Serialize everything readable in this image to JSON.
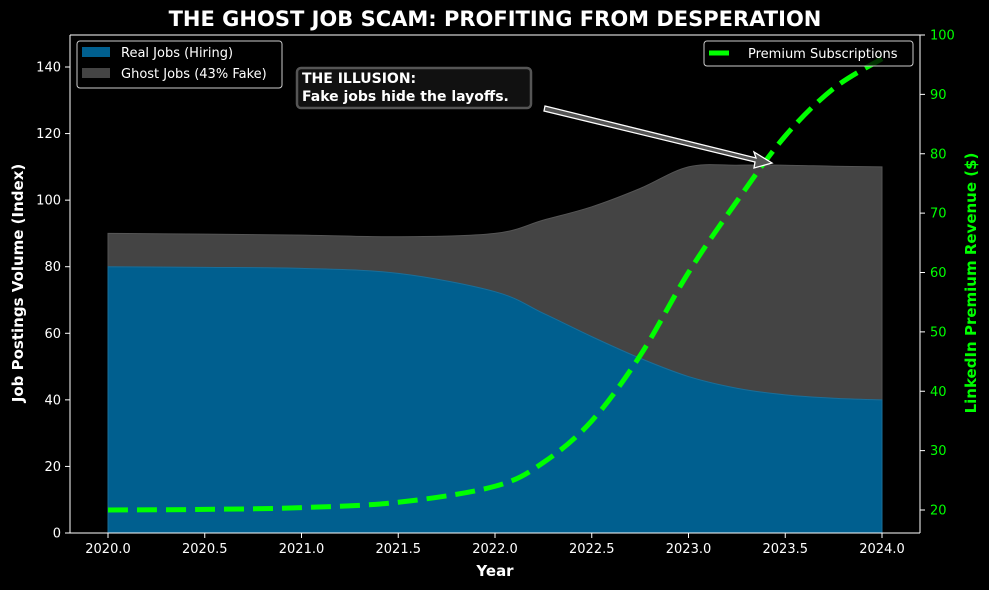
{
  "chart_data": {
    "type": "area",
    "title": "THE GHOST JOB SCAM: PROFITING FROM DESPERATION",
    "xlabel": "Year",
    "ylabel": "Job Postings Volume (Index)",
    "y2label": "LinkedIn Premium Revenue ($)",
    "xlim": [
      2019.8,
      2024.2
    ],
    "ylim": [
      0,
      150
    ],
    "y2lim": [
      16,
      100
    ],
    "x_ticks": [
      "2020.0",
      "2020.5",
      "2021.0",
      "2021.5",
      "2022.0",
      "2022.5",
      "2023.0",
      "2023.5",
      "2024.0"
    ],
    "y_ticks": [
      "0",
      "20",
      "40",
      "60",
      "80",
      "100",
      "120",
      "140"
    ],
    "y2_ticks": [
      "20",
      "30",
      "40",
      "50",
      "60",
      "70",
      "80",
      "90",
      "100"
    ],
    "grid": false,
    "x": [
      2020.0,
      2020.5,
      2021.0,
      2021.5,
      2022.0,
      2022.25,
      2022.5,
      2022.75,
      2023.0,
      2023.25,
      2023.5,
      2023.75,
      2024.0
    ],
    "series": [
      {
        "name": "Real Jobs (Hiring)",
        "kind": "stacked-area",
        "axis": "left",
        "color": "#005f8f",
        "values": [
          80,
          79.8,
          79.5,
          78,
          72.5,
          66,
          59,
          52.5,
          47,
          43.5,
          41.5,
          40.5,
          40
        ]
      },
      {
        "name": "Ghost Jobs (43% Fake)",
        "kind": "stacked-area",
        "axis": "left",
        "color": "#444444",
        "values": [
          10,
          10,
          10,
          11,
          17.5,
          28,
          39,
          51,
          63,
          67,
          69,
          69.7,
          70
        ]
      },
      {
        "name": "Premium Subscriptions",
        "kind": "dashed-line",
        "axis": "right",
        "color": "#00ff00",
        "values": [
          20,
          20.1,
          20.4,
          21.3,
          24,
          28,
          35,
          46,
          60,
          72,
          83,
          91,
          96
        ]
      }
    ],
    "legend_left": [
      "Real Jobs (Hiring)",
      "Ghost Jobs (43% Fake)"
    ],
    "legend_right": [
      "Premium Subscriptions"
    ],
    "annotation": {
      "line1": "THE ILLUSION:",
      "line2": "Fake jobs hide the layoffs.",
      "arrow_target": [
        2023.35,
        111
      ]
    }
  },
  "colors": {
    "background": "#000000",
    "axis": "#ffffff",
    "real_jobs": "#005f8f",
    "ghost_jobs": "#444444",
    "premium": "#00ff00",
    "right_axis_text": "#00ff00"
  }
}
